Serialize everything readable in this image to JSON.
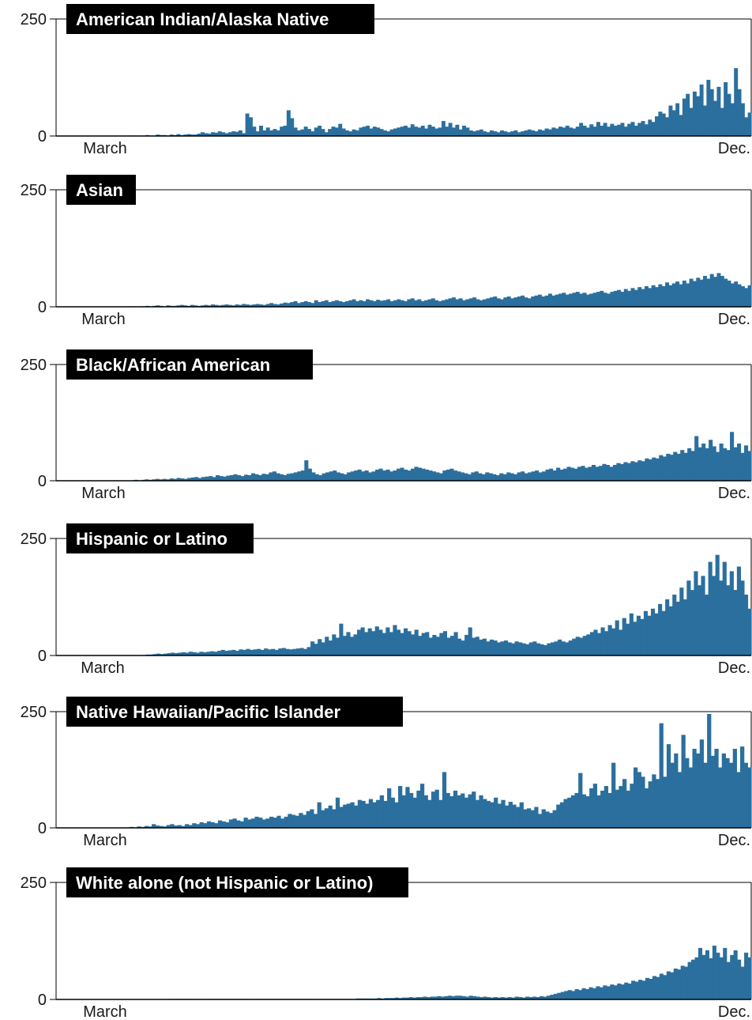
{
  "colors": {
    "bar": "#2b6f9e",
    "title_bg": "#000000",
    "title_text": "#ffffff",
    "frame": "#000000"
  },
  "chart_data": [
    {
      "type": "bar",
      "title": "American Indian/Alaska Native",
      "ylim": [
        0,
        250
      ],
      "y_ticks": [
        "250",
        "0"
      ],
      "x_ticks": [
        "March",
        "Dec."
      ],
      "x_range": [
        "March",
        "Dec."
      ],
      "values": [
        0,
        0,
        0,
        0,
        0,
        0,
        0,
        0,
        0,
        0,
        0,
        0,
        0,
        0,
        0,
        0,
        0,
        0,
        0,
        0,
        0,
        1,
        0,
        1,
        0,
        1,
        2,
        1,
        1,
        3,
        2,
        2,
        1,
        3,
        2,
        4,
        2,
        3,
        4,
        3,
        3,
        5,
        8,
        6,
        5,
        8,
        7,
        10,
        8,
        6,
        8,
        10,
        9,
        12,
        6,
        48,
        40,
        20,
        10,
        22,
        12,
        18,
        12,
        15,
        12,
        20,
        22,
        55,
        38,
        18,
        12,
        14,
        20,
        15,
        10,
        18,
        22,
        15,
        8,
        15,
        20,
        18,
        26,
        16,
        12,
        10,
        14,
        12,
        18,
        20,
        22,
        16,
        20,
        18,
        15,
        12,
        10,
        14,
        16,
        18,
        20,
        22,
        18,
        25,
        20,
        18,
        22,
        16,
        24,
        20,
        16,
        18,
        32,
        20,
        28,
        18,
        24,
        14,
        22,
        18,
        12,
        10,
        12,
        14,
        10,
        8,
        12,
        10,
        8,
        12,
        10,
        8,
        10,
        12,
        8,
        10,
        12,
        14,
        12,
        10,
        14,
        12,
        16,
        14,
        18,
        16,
        20,
        18,
        22,
        18,
        16,
        20,
        28,
        22,
        18,
        25,
        20,
        30,
        22,
        28,
        20,
        26,
        22,
        24,
        28,
        20,
        26,
        30,
        22,
        28,
        32,
        25,
        35,
        30,
        42,
        52,
        48,
        40,
        65,
        55,
        70,
        45,
        80,
        90,
        60,
        95,
        85,
        110,
        65,
        120,
        100,
        75,
        105,
        60,
        115,
        90,
        70,
        145,
        100,
        70,
        40,
        50
      ]
    },
    {
      "type": "bar",
      "title": "Asian",
      "ylim": [
        0,
        250
      ],
      "y_ticks": [
        "250",
        "0"
      ],
      "x_ticks": [
        "March",
        "Dec."
      ],
      "x_range": [
        "March",
        "Dec."
      ],
      "values": [
        0,
        0,
        0,
        0,
        0,
        0,
        0,
        0,
        0,
        0,
        0,
        0,
        0,
        0,
        0,
        0,
        0,
        0,
        0,
        0,
        0,
        1,
        1,
        0,
        1,
        1,
        2,
        1,
        2,
        3,
        2,
        1,
        3,
        2,
        2,
        3,
        4,
        3,
        2,
        4,
        3,
        2,
        3,
        4,
        3,
        5,
        4,
        3,
        4,
        5,
        4,
        3,
        5,
        4,
        6,
        5,
        4,
        5,
        6,
        5,
        4,
        6,
        8,
        6,
        5,
        7,
        9,
        8,
        10,
        12,
        8,
        10,
        12,
        10,
        8,
        14,
        10,
        12,
        14,
        10,
        12,
        14,
        12,
        10,
        12,
        14,
        16,
        12,
        14,
        12,
        16,
        14,
        12,
        15,
        13,
        14,
        16,
        12,
        14,
        16,
        14,
        12,
        16,
        18,
        14,
        16,
        12,
        14,
        16,
        18,
        14,
        12,
        14,
        16,
        18,
        20,
        16,
        18,
        14,
        16,
        18,
        20,
        16,
        14,
        16,
        18,
        20,
        22,
        18,
        16,
        20,
        22,
        18,
        20,
        22,
        24,
        20,
        18,
        22,
        24,
        26,
        22,
        24,
        28,
        24,
        26,
        28,
        30,
        26,
        28,
        30,
        32,
        28,
        30,
        26,
        28,
        30,
        32,
        34,
        30,
        28,
        32,
        34,
        36,
        32,
        38,
        34,
        40,
        36,
        42,
        38,
        44,
        40,
        46,
        42,
        48,
        44,
        52,
        46,
        50,
        54,
        48,
        56,
        50,
        60,
        55,
        62,
        58,
        66,
        60,
        70,
        64,
        72,
        66,
        60,
        56,
        50,
        54,
        48,
        44,
        40,
        46
      ]
    },
    {
      "type": "bar",
      "title": "Black/African American",
      "ylim": [
        0,
        250
      ],
      "y_ticks": [
        "250",
        "0"
      ],
      "x_ticks": [
        "March",
        "Dec."
      ],
      "x_range": [
        "March",
        "Dec."
      ],
      "values": [
        0,
        0,
        0,
        0,
        0,
        0,
        0,
        0,
        0,
        0,
        0,
        0,
        0,
        0,
        0,
        0,
        0,
        0,
        0,
        0,
        0,
        1,
        2,
        1,
        2,
        3,
        2,
        3,
        4,
        3,
        4,
        3,
        5,
        4,
        6,
        5,
        4,
        6,
        7,
        8,
        6,
        8,
        9,
        10,
        8,
        12,
        10,
        9,
        11,
        12,
        14,
        12,
        10,
        13,
        12,
        16,
        14,
        12,
        15,
        14,
        18,
        20,
        16,
        14,
        12,
        15,
        16,
        18,
        20,
        22,
        44,
        26,
        18,
        14,
        12,
        16,
        18,
        20,
        22,
        18,
        16,
        14,
        18,
        20,
        22,
        24,
        20,
        22,
        18,
        20,
        24,
        26,
        22,
        24,
        20,
        22,
        26,
        28,
        24,
        22,
        26,
        30,
        28,
        26,
        24,
        22,
        20,
        18,
        16,
        22,
        24,
        26,
        22,
        20,
        18,
        16,
        14,
        18,
        20,
        16,
        14,
        18,
        16,
        14,
        12,
        16,
        14,
        18,
        16,
        14,
        18,
        20,
        16,
        18,
        20,
        22,
        18,
        20,
        24,
        26,
        22,
        28,
        24,
        26,
        30,
        28,
        26,
        30,
        32,
        28,
        30,
        34,
        30,
        32,
        36,
        34,
        30,
        34,
        38,
        36,
        40,
        38,
        42,
        40,
        44,
        42,
        48,
        46,
        50,
        48,
        55,
        52,
        58,
        56,
        62,
        58,
        66,
        60,
        70,
        64,
        96,
        72,
        80,
        70,
        88,
        74,
        62,
        80,
        70,
        66,
        105,
        72,
        80,
        60,
        76,
        64
      ]
    },
    {
      "type": "bar",
      "title": "Hispanic or Latino",
      "ylim": [
        0,
        250
      ],
      "y_ticks": [
        "250",
        "0"
      ],
      "x_ticks": [
        "March",
        "Dec."
      ],
      "x_range": [
        "March",
        "Dec."
      ],
      "values": [
        0,
        0,
        0,
        0,
        0,
        0,
        0,
        0,
        0,
        0,
        0,
        0,
        0,
        0,
        0,
        0,
        0,
        0,
        0,
        0,
        0,
        0,
        0,
        0,
        1,
        2,
        2,
        3,
        4,
        3,
        4,
        5,
        6,
        5,
        6,
        7,
        6,
        8,
        7,
        6,
        8,
        7,
        8,
        9,
        8,
        10,
        12,
        10,
        11,
        12,
        10,
        13,
        12,
        14,
        12,
        13,
        14,
        12,
        15,
        13,
        14,
        12,
        15,
        16,
        14,
        13,
        14,
        15,
        16,
        14,
        18,
        30,
        25,
        35,
        28,
        40,
        32,
        45,
        38,
        68,
        42,
        50,
        40,
        45,
        55,
        60,
        50,
        58,
        52,
        62,
        55,
        48,
        60,
        50,
        65,
        55,
        48,
        58,
        52,
        45,
        55,
        42,
        48,
        50,
        38,
        44,
        40,
        48,
        52,
        38,
        42,
        50,
        36,
        32,
        44,
        60,
        38,
        40,
        34,
        36,
        30,
        34,
        32,
        28,
        30,
        32,
        28,
        26,
        30,
        28,
        26,
        24,
        28,
        30,
        26,
        24,
        22,
        26,
        28,
        30,
        34,
        30,
        28,
        32,
        36,
        40,
        38,
        42,
        45,
        50,
        55,
        48,
        60,
        52,
        65,
        58,
        75,
        55,
        80,
        68,
        90,
        72,
        85,
        78,
        95,
        85,
        100,
        90,
        110,
        95,
        120,
        105,
        130,
        115,
        145,
        120,
        160,
        140,
        180,
        150,
        170,
        130,
        200,
        170,
        215,
        160,
        200,
        150,
        180,
        140,
        190,
        160,
        130,
        100
      ]
    },
    {
      "type": "bar",
      "title": "Native Hawaiian/Pacific Islander",
      "ylim": [
        0,
        250
      ],
      "y_ticks": [
        "250",
        "0"
      ],
      "x_ticks": [
        "March",
        "Dec."
      ],
      "x_range": [
        "March",
        "Dec."
      ],
      "values": [
        0,
        0,
        0,
        0,
        0,
        0,
        0,
        0,
        0,
        0,
        0,
        0,
        0,
        0,
        0,
        0,
        0,
        0,
        0,
        1,
        2,
        1,
        3,
        2,
        4,
        3,
        8,
        5,
        4,
        3,
        6,
        8,
        5,
        6,
        4,
        8,
        6,
        10,
        8,
        12,
        10,
        14,
        12,
        10,
        16,
        14,
        12,
        18,
        20,
        16,
        14,
        22,
        18,
        20,
        24,
        22,
        18,
        20,
        24,
        22,
        26,
        20,
        24,
        30,
        28,
        26,
        32,
        28,
        36,
        40,
        30,
        55,
        38,
        42,
        48,
        40,
        65,
        45,
        50,
        52,
        55,
        48,
        60,
        58,
        52,
        62,
        55,
        60,
        70,
        58,
        85,
        65,
        55,
        90,
        70,
        88,
        75,
        65,
        80,
        95,
        70,
        60,
        78,
        82,
        60,
        120,
        75,
        68,
        80,
        70,
        74,
        65,
        72,
        78,
        60,
        70,
        62,
        58,
        55,
        65,
        52,
        60,
        48,
        56,
        50,
        45,
        55,
        40,
        42,
        38,
        45,
        30,
        40,
        35,
        32,
        38,
        50,
        55,
        62,
        65,
        70,
        75,
        118,
        72,
        68,
        85,
        95,
        70,
        80,
        90,
        75,
        140,
        82,
        90,
        105,
        80,
        95,
        130,
        120,
        110,
        85,
        100,
        115,
        105,
        225,
        110,
        180,
        140,
        160,
        120,
        200,
        150,
        130,
        170,
        160,
        190,
        140,
        245,
        155,
        170,
        130,
        160,
        150,
        140,
        170,
        120,
        175,
        140,
        130
      ]
    },
    {
      "type": "bar",
      "title": "White alone (not Hispanic or Latino)",
      "ylim": [
        0,
        250
      ],
      "y_ticks": [
        "250",
        "0"
      ],
      "x_ticks": [
        "March",
        "Dec."
      ],
      "x_range": [
        "March",
        "Dec."
      ],
      "values": [
        0,
        0,
        0,
        0,
        0,
        0,
        0,
        0,
        0,
        0,
        0,
        0,
        0,
        0,
        0,
        0,
        0,
        0,
        0,
        0,
        0,
        0,
        0,
        0,
        0,
        0,
        0,
        0,
        0,
        0,
        0,
        0,
        1,
        1,
        1,
        1,
        1,
        1,
        1,
        1,
        1,
        1,
        1,
        1,
        1,
        1,
        1,
        1,
        1,
        1,
        1,
        1,
        1,
        1,
        1,
        1,
        1,
        1,
        1,
        1,
        1,
        1,
        1,
        1,
        1,
        1,
        1,
        1,
        1,
        1,
        1,
        1,
        1,
        1,
        1,
        1,
        1,
        1,
        1,
        1,
        1,
        1,
        1,
        1,
        1,
        2,
        2,
        2,
        2,
        2,
        2,
        3,
        2,
        3,
        3,
        3,
        4,
        3,
        4,
        4,
        5,
        4,
        5,
        5,
        6,
        5,
        6,
        6,
        7,
        6,
        7,
        8,
        7,
        8,
        8,
        7,
        6,
        8,
        7,
        6,
        5,
        6,
        5,
        4,
        5,
        4,
        5,
        4,
        5,
        4,
        6,
        5,
        4,
        6,
        5,
        6,
        5,
        7,
        6,
        8,
        10,
        12,
        14,
        16,
        18,
        20,
        18,
        22,
        20,
        24,
        22,
        26,
        24,
        28,
        26,
        30,
        28,
        32,
        30,
        34,
        32,
        36,
        34,
        40,
        38,
        42,
        40,
        46,
        44,
        50,
        48,
        55,
        52,
        60,
        58,
        66,
        64,
        72,
        70,
        80,
        85,
        90,
        110,
        95,
        105,
        88,
        115,
        100,
        90,
        110,
        80,
        95,
        105,
        85,
        70,
        100,
        90
      ]
    }
  ]
}
